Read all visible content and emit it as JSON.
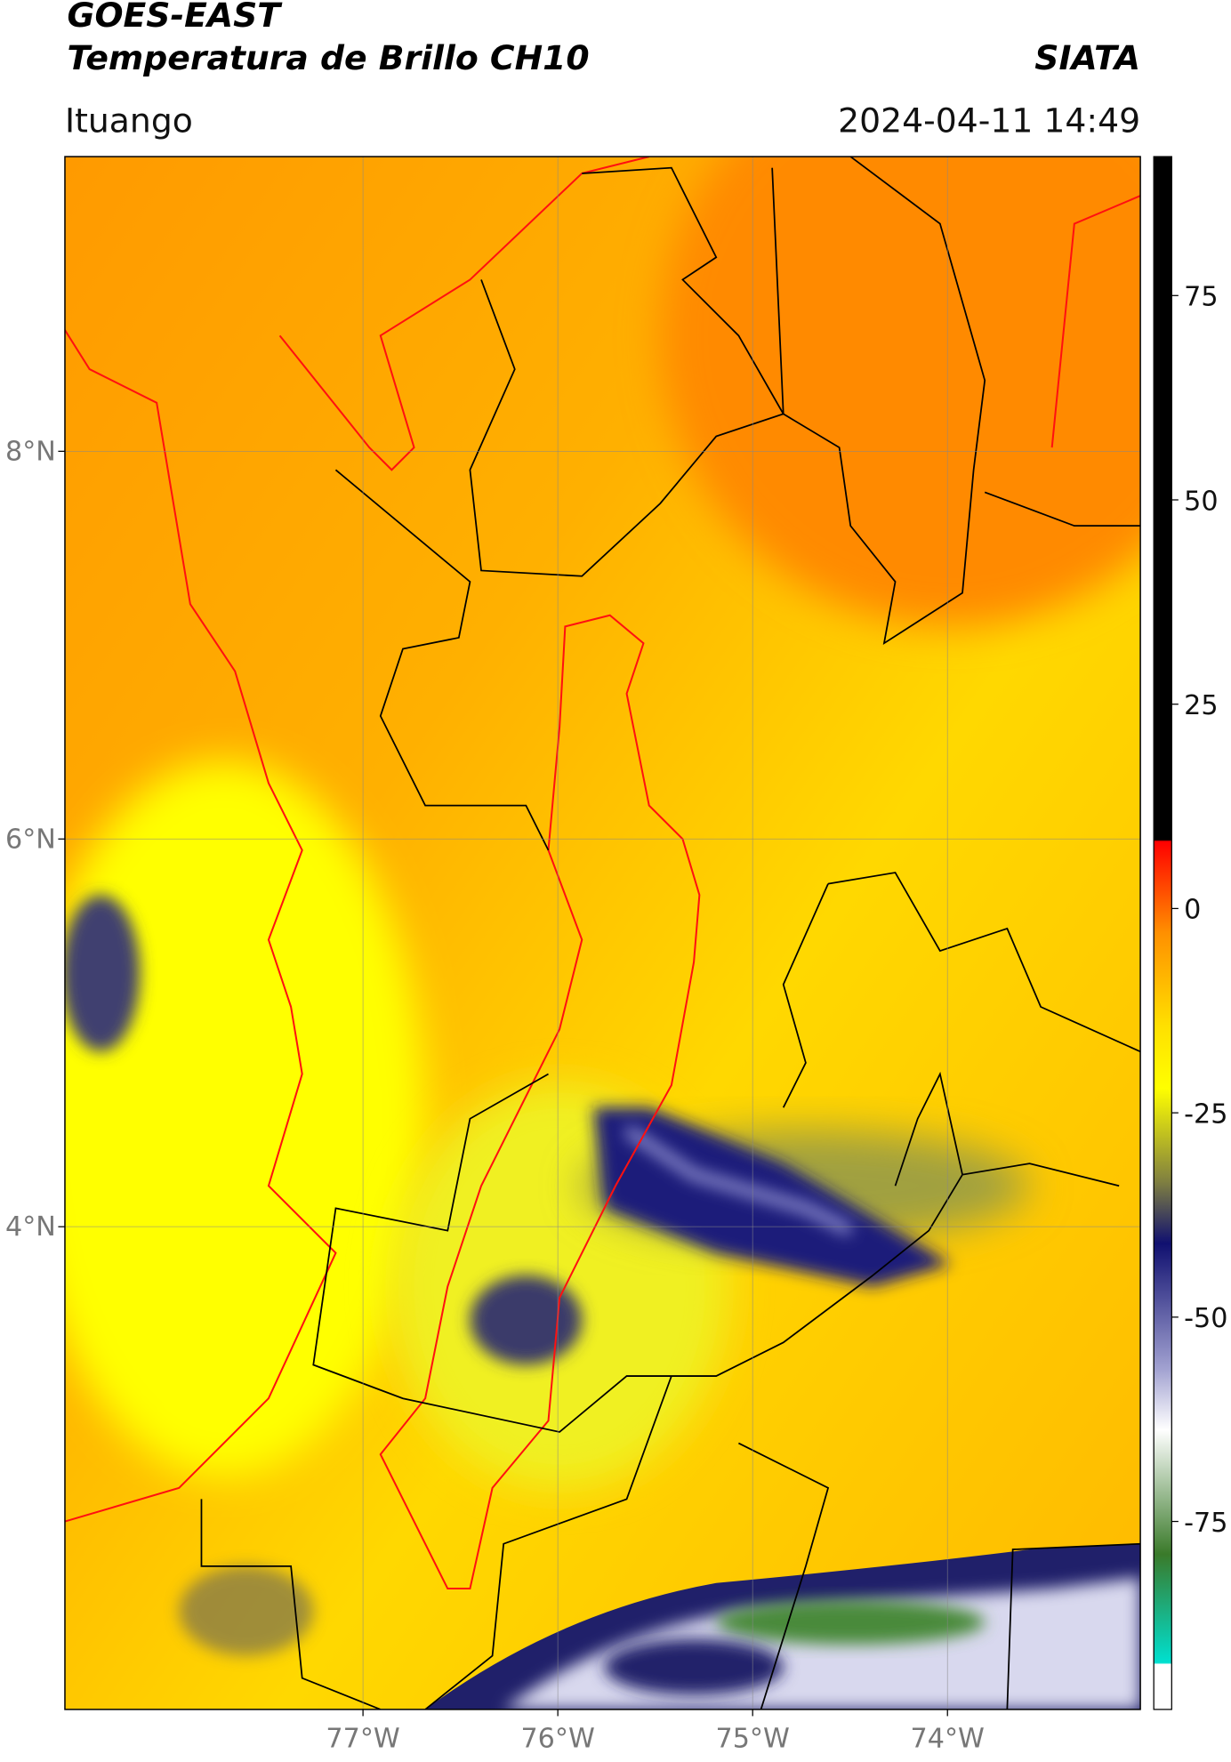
{
  "header": {
    "title": "GOES-EAST",
    "subtitle": "Temperatura de Brillo CH10",
    "agency": "SIATA",
    "location": "Ituango",
    "datetime": "2024-04-11 14:49"
  },
  "map": {
    "xlim": [
      -78.53,
      -73.01
    ],
    "ylim": [
      1.51,
      9.52
    ],
    "xticks": [
      {
        "value": -77,
        "label": "77°W"
      },
      {
        "value": -76,
        "label": "76°W"
      },
      {
        "value": -75,
        "label": "75°W"
      },
      {
        "value": -74,
        "label": "74°W"
      }
    ],
    "yticks": [
      {
        "value": 8,
        "label": "8°N"
      },
      {
        "value": 6,
        "label": "6°N"
      },
      {
        "value": 4,
        "label": "4°N"
      }
    ],
    "grid": true
  },
  "colorbar": {
    "lim": [
      -98,
      92
    ],
    "ticks": [
      75,
      50,
      25,
      0,
      -25,
      -50,
      -75
    ]
  }
}
